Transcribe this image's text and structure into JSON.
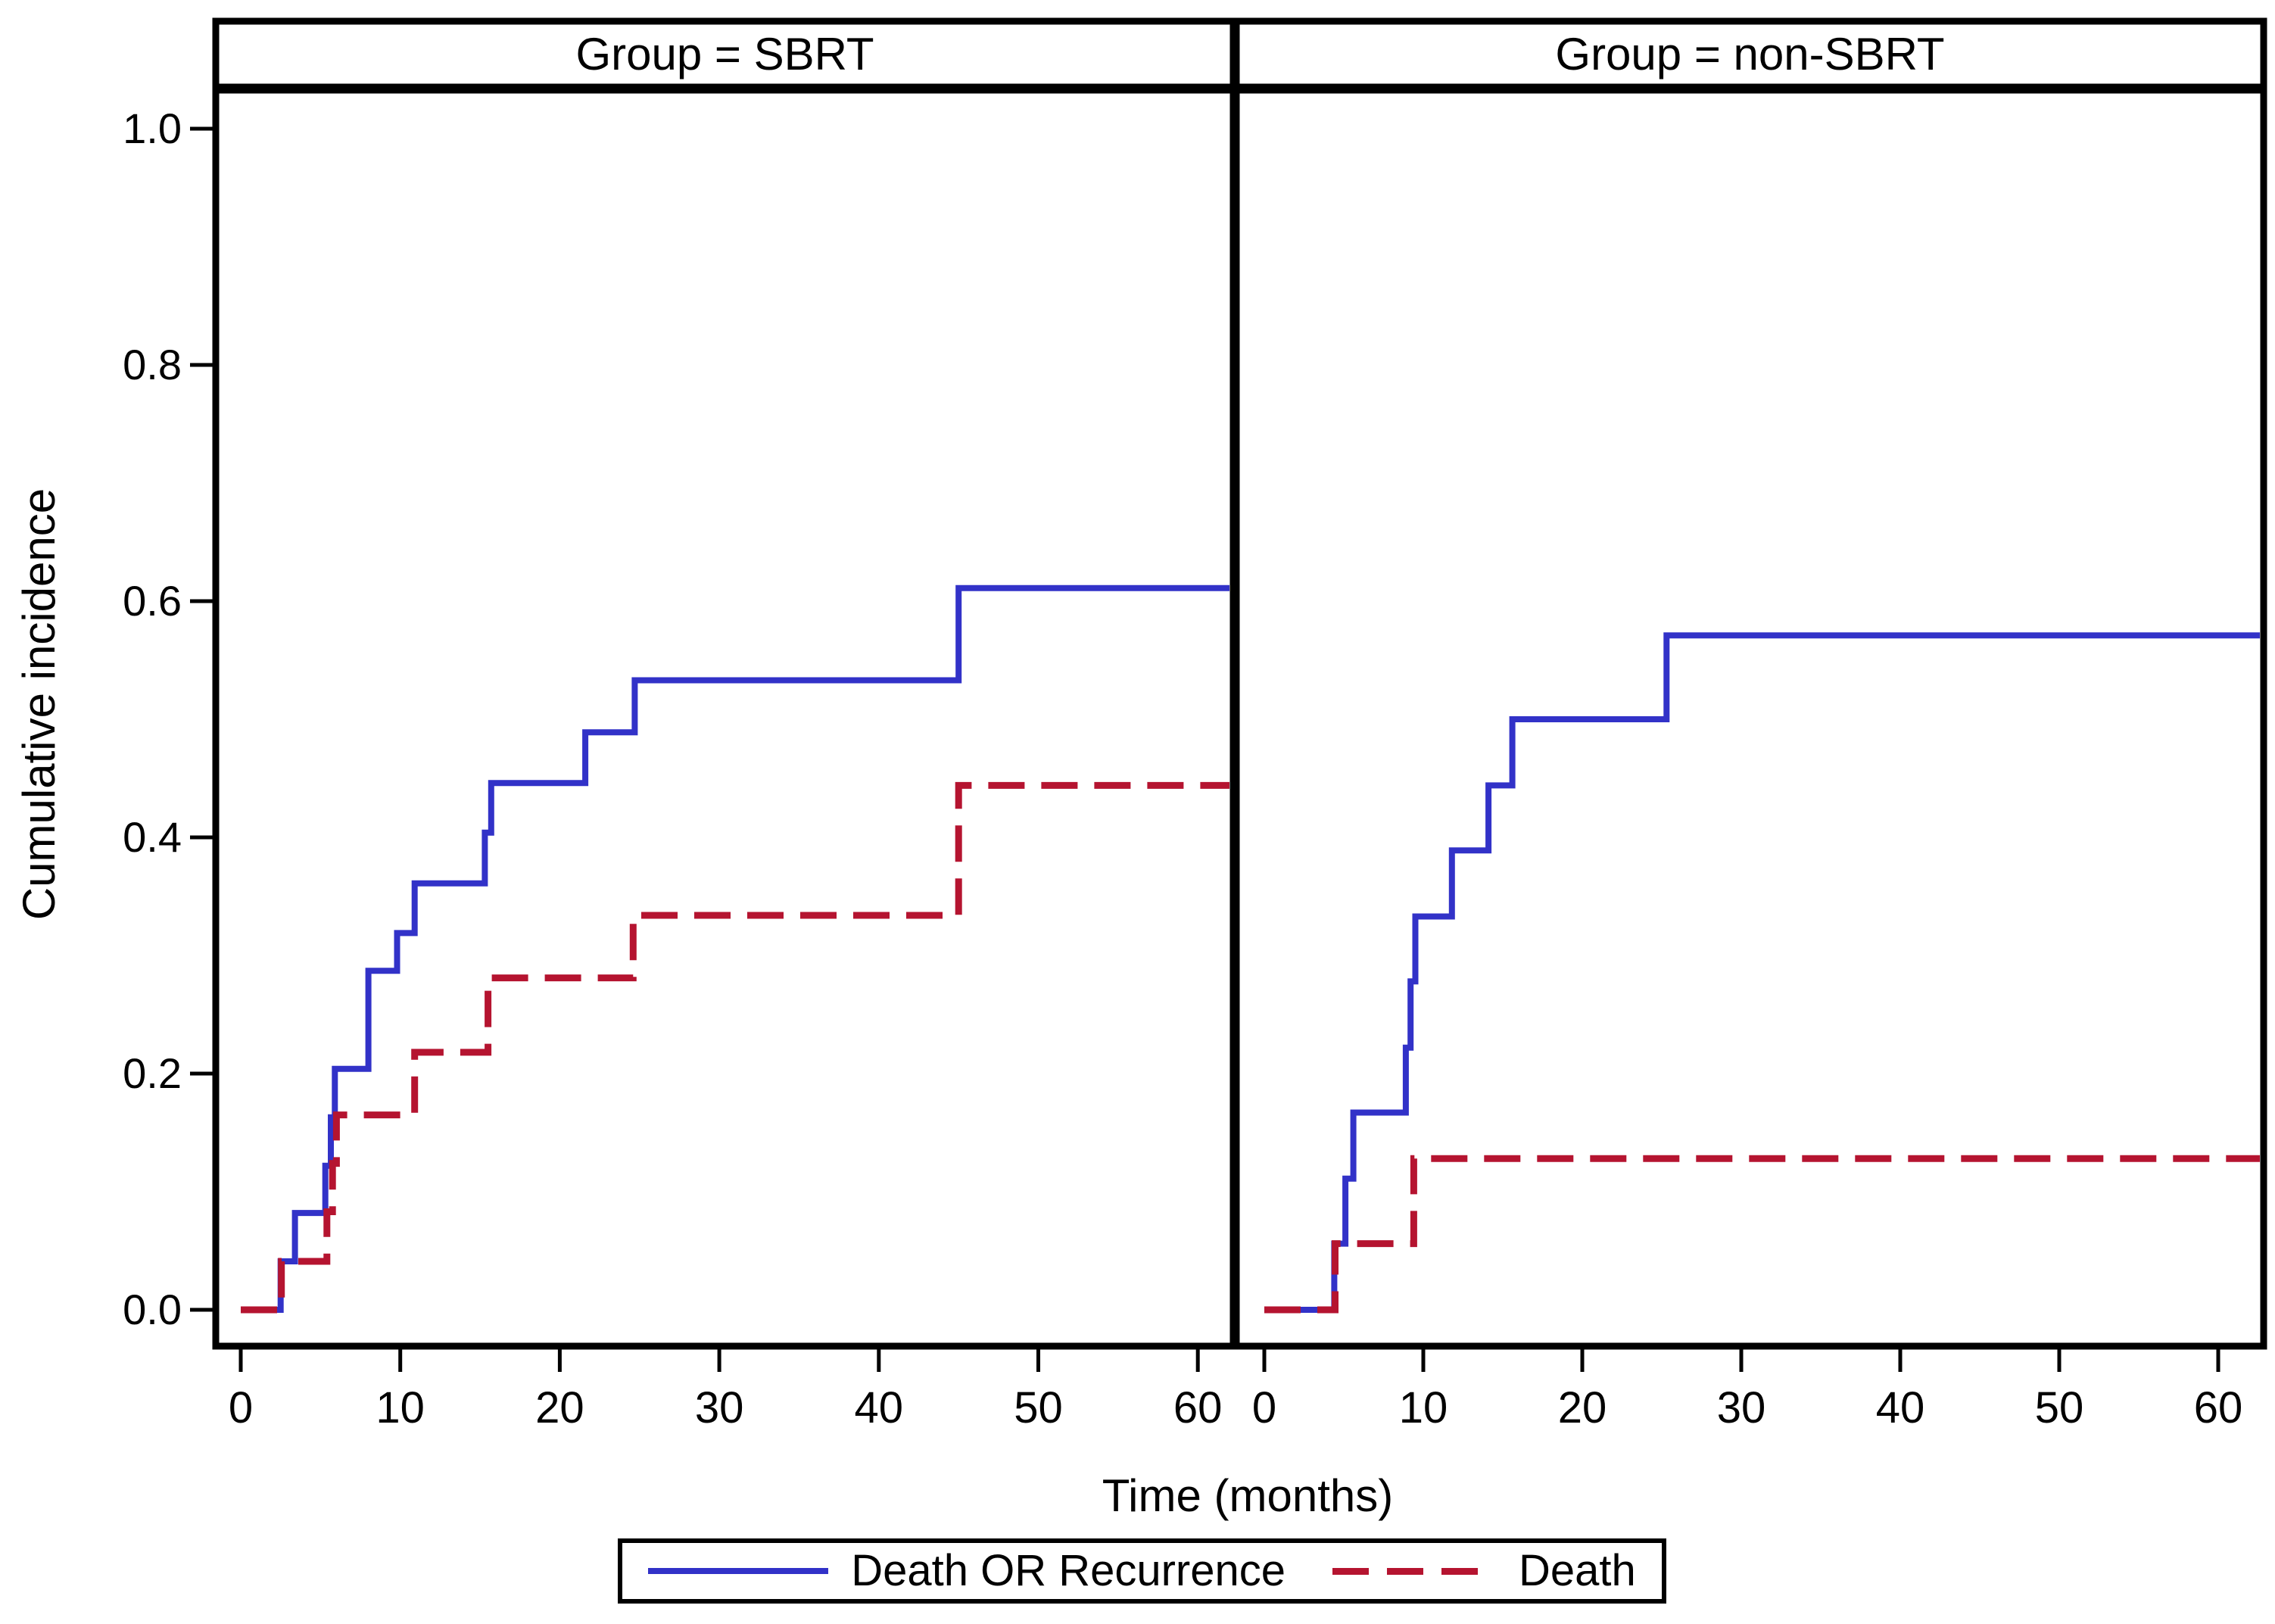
{
  "figure": {
    "background": "#ffffff",
    "frame_color": "#000000"
  },
  "colors": {
    "event_line": "#3232c8",
    "death_line": "#b51430",
    "axis": "#000000",
    "background": "#ffffff"
  },
  "chart_data": {
    "type": "line",
    "variant": "step_cumulative_incidence",
    "title": "",
    "xlabel": "Time (months)",
    "ylabel": "Cumulative incidence",
    "xlim": [
      0,
      62
    ],
    "ylim": [
      0,
      1.0
    ],
    "x_ticks": [
      0,
      10,
      20,
      30,
      40,
      50,
      60
    ],
    "y_ticks": [
      "0.0",
      "0.2",
      "0.4",
      "0.6",
      "0.8",
      "1.0"
    ],
    "grid": "off",
    "legend_position": "bottom",
    "panels": [
      {
        "label": "Group = SBRT",
        "series": [
          {
            "name": "Death OR Recurrence",
            "style": "solid",
            "color": "#3232c8",
            "points": [
              [
                0,
                0
              ],
              [
                2.5,
                0.041
              ],
              [
                3.4,
                0.082
              ],
              [
                5.3,
                0.122
              ],
              [
                5.65,
                0.163
              ],
              [
                5.9,
                0.204
              ],
              [
                8.0,
                0.287
              ],
              [
                9.8,
                0.319
              ],
              [
                10.9,
                0.361
              ],
              [
                15.3,
                0.404
              ],
              [
                15.7,
                0.446
              ],
              [
                21.6,
                0.489
              ],
              [
                24.7,
                0.533
              ],
              [
                45.0,
                0.611
              ]
            ],
            "final_value": 0.611
          },
          {
            "name": "Death",
            "style": "dashed",
            "color": "#b51430",
            "points": [
              [
                0,
                0
              ],
              [
                2.55,
                0.041
              ],
              [
                5.4,
                0.083
              ],
              [
                5.75,
                0.124
              ],
              [
                6.0,
                0.165
              ],
              [
                10.9,
                0.218
              ],
              [
                15.5,
                0.281
              ],
              [
                24.6,
                0.334
              ],
              [
                45.0,
                0.444
              ]
            ],
            "final_value": 0.444
          }
        ]
      },
      {
        "label": "Group = non-SBRT",
        "series": [
          {
            "name": "Death OR Recurrence",
            "style": "solid",
            "color": "#3232c8",
            "points": [
              [
                0,
                0
              ],
              [
                4.4,
                0.056
              ],
              [
                5.1,
                0.111
              ],
              [
                5.6,
                0.167
              ],
              [
                8.9,
                0.222
              ],
              [
                9.2,
                0.278
              ],
              [
                9.5,
                0.333
              ],
              [
                11.8,
                0.389
              ],
              [
                14.1,
                0.444
              ],
              [
                15.6,
                0.5
              ],
              [
                25.3,
                0.571
              ]
            ],
            "final_value": 0.571
          },
          {
            "name": "Death",
            "style": "dashed",
            "color": "#b51430",
            "points": [
              [
                0,
                0
              ],
              [
                4.45,
                0.056
              ],
              [
                9.4,
                0.128
              ]
            ],
            "final_value": 0.128
          }
        ]
      }
    ],
    "legend": [
      {
        "label": "Death OR Recurrence",
        "style": "solid",
        "color": "#3232c8"
      },
      {
        "label": "Death",
        "style": "dashed",
        "color": "#b51430"
      }
    ]
  }
}
